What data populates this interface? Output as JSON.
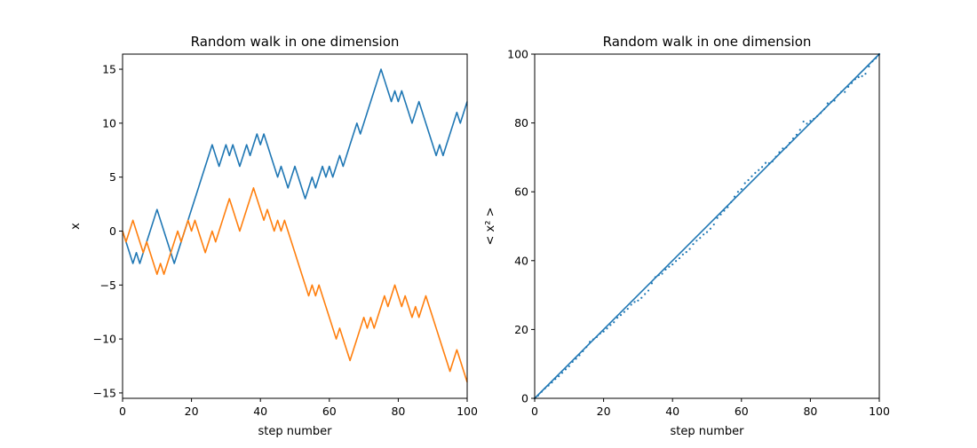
{
  "chart_data": [
    {
      "type": "line",
      "title": "Random walk in one dimension",
      "xlabel": "step number",
      "ylabel": "x",
      "xlim": [
        0,
        100
      ],
      "ylim": [
        -15.5,
        16.4
      ],
      "xticks": [
        0,
        20,
        40,
        60,
        80,
        100
      ],
      "yticks": [
        -15,
        -10,
        -5,
        0,
        5,
        10,
        15
      ],
      "grid": false,
      "colors": [
        "#1f77b4",
        "#ff7f0e"
      ],
      "series": [
        {
          "color": "#1f77b4",
          "values": [
            0,
            -1,
            -2,
            -3,
            -2,
            -3,
            -2,
            -1,
            0,
            1,
            2,
            1,
            0,
            -1,
            -2,
            -3,
            -2,
            -1,
            0,
            1,
            2,
            3,
            4,
            5,
            6,
            7,
            8,
            7,
            6,
            7,
            8,
            7,
            8,
            7,
            6,
            7,
            8,
            7,
            8,
            9,
            8,
            9,
            8,
            7,
            6,
            5,
            6,
            5,
            4,
            5,
            6,
            5,
            4,
            3,
            4,
            5,
            4,
            5,
            6,
            5,
            6,
            5,
            6,
            7,
            6,
            7,
            8,
            9,
            10,
            9,
            10,
            11,
            12,
            13,
            14,
            15,
            14,
            13,
            12,
            13,
            12,
            13,
            12,
            11,
            10,
            11,
            12,
            11,
            10,
            9,
            8,
            7,
            8,
            7,
            8,
            9,
            10,
            11,
            10,
            11,
            12
          ]
        },
        {
          "color": "#ff7f0e",
          "values": [
            0,
            -1,
            0,
            1,
            0,
            -1,
            -2,
            -1,
            -2,
            -3,
            -4,
            -3,
            -4,
            -3,
            -2,
            -1,
            0,
            -1,
            0,
            1,
            0,
            1,
            0,
            -1,
            -2,
            -1,
            0,
            -1,
            0,
            1,
            2,
            3,
            2,
            1,
            0,
            1,
            2,
            3,
            4,
            3,
            2,
            1,
            2,
            1,
            0,
            1,
            0,
            1,
            0,
            -1,
            -2,
            -3,
            -4,
            -5,
            -6,
            -5,
            -6,
            -5,
            -6,
            -7,
            -8,
            -9,
            -10,
            -9,
            -10,
            -11,
            -12,
            -11,
            -10,
            -9,
            -8,
            -9,
            -8,
            -9,
            -8,
            -7,
            -6,
            -7,
            -6,
            -5,
            -6,
            -7,
            -6,
            -7,
            -8,
            -7,
            -8,
            -7,
            -6,
            -7,
            -8,
            -9,
            -10,
            -11,
            -12,
            -13,
            -12,
            -11,
            -12,
            -13,
            -14
          ]
        }
      ]
    },
    {
      "type": "scatter",
      "title": "Random walk in one dimension",
      "xlabel": "step number",
      "ylabel": "< x² >",
      "xlim": [
        0,
        100
      ],
      "ylim": [
        0,
        100
      ],
      "xticks": [
        0,
        20,
        40,
        60,
        80,
        100
      ],
      "yticks": [
        0,
        20,
        40,
        60,
        80,
        100
      ],
      "grid": false,
      "colors": [
        "#1f77b4"
      ],
      "series": [
        {
          "color": "#1f77b4",
          "style": "line",
          "x": [
            0,
            100
          ],
          "y": [
            0,
            100
          ]
        },
        {
          "color": "#1f77b4",
          "style": "points",
          "x": [
            0,
            1,
            2,
            3,
            4,
            5,
            6,
            7,
            8,
            9,
            10,
            11,
            12,
            13,
            14,
            15,
            16,
            17,
            18,
            19,
            20,
            21,
            22,
            23,
            24,
            25,
            26,
            27,
            28,
            29,
            30,
            31,
            32,
            33,
            34,
            35,
            36,
            37,
            38,
            39,
            40,
            41,
            42,
            43,
            44,
            45,
            46,
            47,
            48,
            49,
            50,
            51,
            52,
            53,
            54,
            55,
            56,
            57,
            58,
            59,
            60,
            61,
            62,
            63,
            64,
            65,
            66,
            67,
            68,
            69,
            70,
            71,
            72,
            73,
            74,
            75,
            76,
            77,
            78,
            79,
            80,
            81,
            82,
            83,
            84,
            85,
            86,
            87,
            88,
            89,
            90,
            91,
            92,
            93,
            94,
            95,
            96,
            97,
            98,
            99,
            100
          ],
          "y": [
            0,
            0.8,
            1.9,
            2.9,
            3.7,
            4.6,
            5.6,
            6.4,
            7.4,
            8.4,
            9.3,
            10.6,
            11.5,
            12.5,
            13.7,
            14.9,
            16.4,
            17.1,
            17.8,
            18.8,
            19.4,
            20.3,
            21.3,
            22.1,
            23.4,
            24.2,
            25.1,
            26.0,
            27.2,
            28.0,
            28.4,
            29.2,
            30.3,
            31.3,
            33.4,
            35.2,
            35.8,
            36.2,
            37.4,
            38.2,
            38.9,
            39.9,
            40.7,
            41.8,
            42.5,
            43.4,
            44.8,
            45.8,
            46.6,
            47.6,
            48.3,
            49.3,
            50.5,
            52.4,
            53.4,
            54.5,
            55.5,
            57.0,
            58.6,
            60.0,
            60.8,
            62.5,
            63.4,
            64.5,
            65.5,
            66.3,
            67.2,
            68.4,
            68.3,
            68.8,
            70.2,
            71.5,
            72.6,
            72.9,
            74.2,
            75.5,
            76.6,
            78.0,
            80.4,
            79.8,
            80.6,
            81.2,
            82.0,
            82.9,
            84.0,
            85.7,
            86.1,
            86.5,
            88.1,
            89.1,
            89.0,
            90.5,
            91.6,
            92.7,
            93.3,
            93.6,
            94.3,
            96.4,
            97.9,
            98.8,
            100
          ]
        }
      ]
    }
  ]
}
